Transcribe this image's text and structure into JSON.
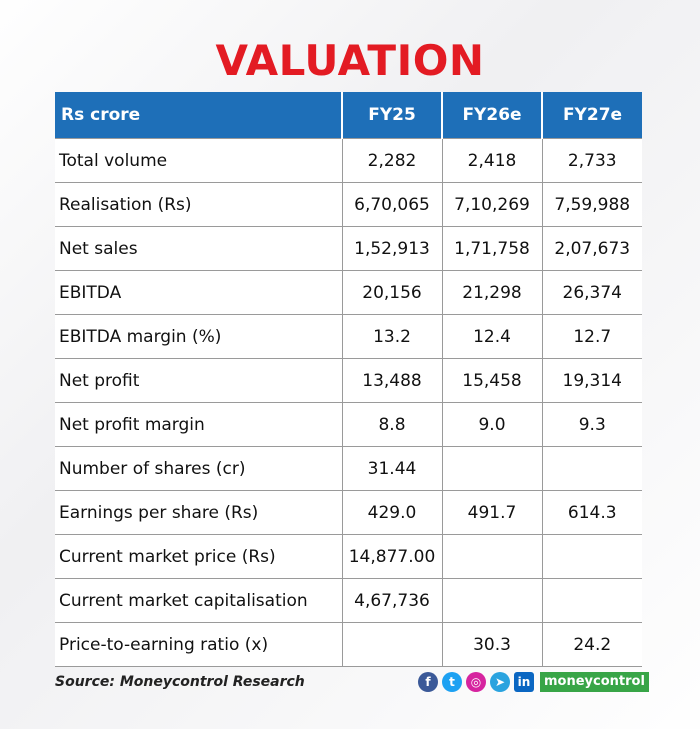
{
  "title": "VALUATION",
  "table": {
    "headers": [
      "Rs crore",
      "FY25",
      "FY26e",
      "FY27e"
    ],
    "rows": [
      [
        "Total volume",
        "2,282",
        "2,418",
        "2,733"
      ],
      [
        "Realisation (Rs)",
        "6,70,065",
        "7,10,269",
        "7,59,988"
      ],
      [
        "Net sales",
        "1,52,913",
        "1,71,758",
        "2,07,673"
      ],
      [
        "EBITDA",
        "20,156",
        "21,298",
        "26,374"
      ],
      [
        "EBITDA margin (%)",
        "13.2",
        "12.4",
        "12.7"
      ],
      [
        "Net profit",
        "13,488",
        "15,458",
        "19,314"
      ],
      [
        "Net profit margin",
        "8.8",
        "9.0",
        "9.3"
      ],
      [
        "Number of shares (cr)",
        "31.44",
        "",
        ""
      ],
      [
        "Earnings per share (Rs)",
        "429.0",
        "491.7",
        "614.3"
      ],
      [
        "Current market price (Rs)",
        "14,877.00",
        "",
        ""
      ],
      [
        "Current market capitalisation",
        "4,67,736",
        "",
        ""
      ],
      [
        "Price-to-earning ratio (x)",
        "",
        "30.3",
        "24.2"
      ]
    ]
  },
  "footer": {
    "source": "Source: Moneycontrol Research",
    "social_icons": [
      {
        "name": "facebook-icon",
        "glyph": "f"
      },
      {
        "name": "twitter-icon",
        "glyph": "t"
      },
      {
        "name": "instagram-icon",
        "glyph": "◎"
      },
      {
        "name": "telegram-icon",
        "glyph": "➤"
      },
      {
        "name": "linkedin-icon",
        "glyph": "in"
      }
    ],
    "brand": "moneycontrol"
  },
  "colors": {
    "title": "#e31b23",
    "header_bg": "#1e6fb8",
    "brand_bg": "#38a547"
  }
}
